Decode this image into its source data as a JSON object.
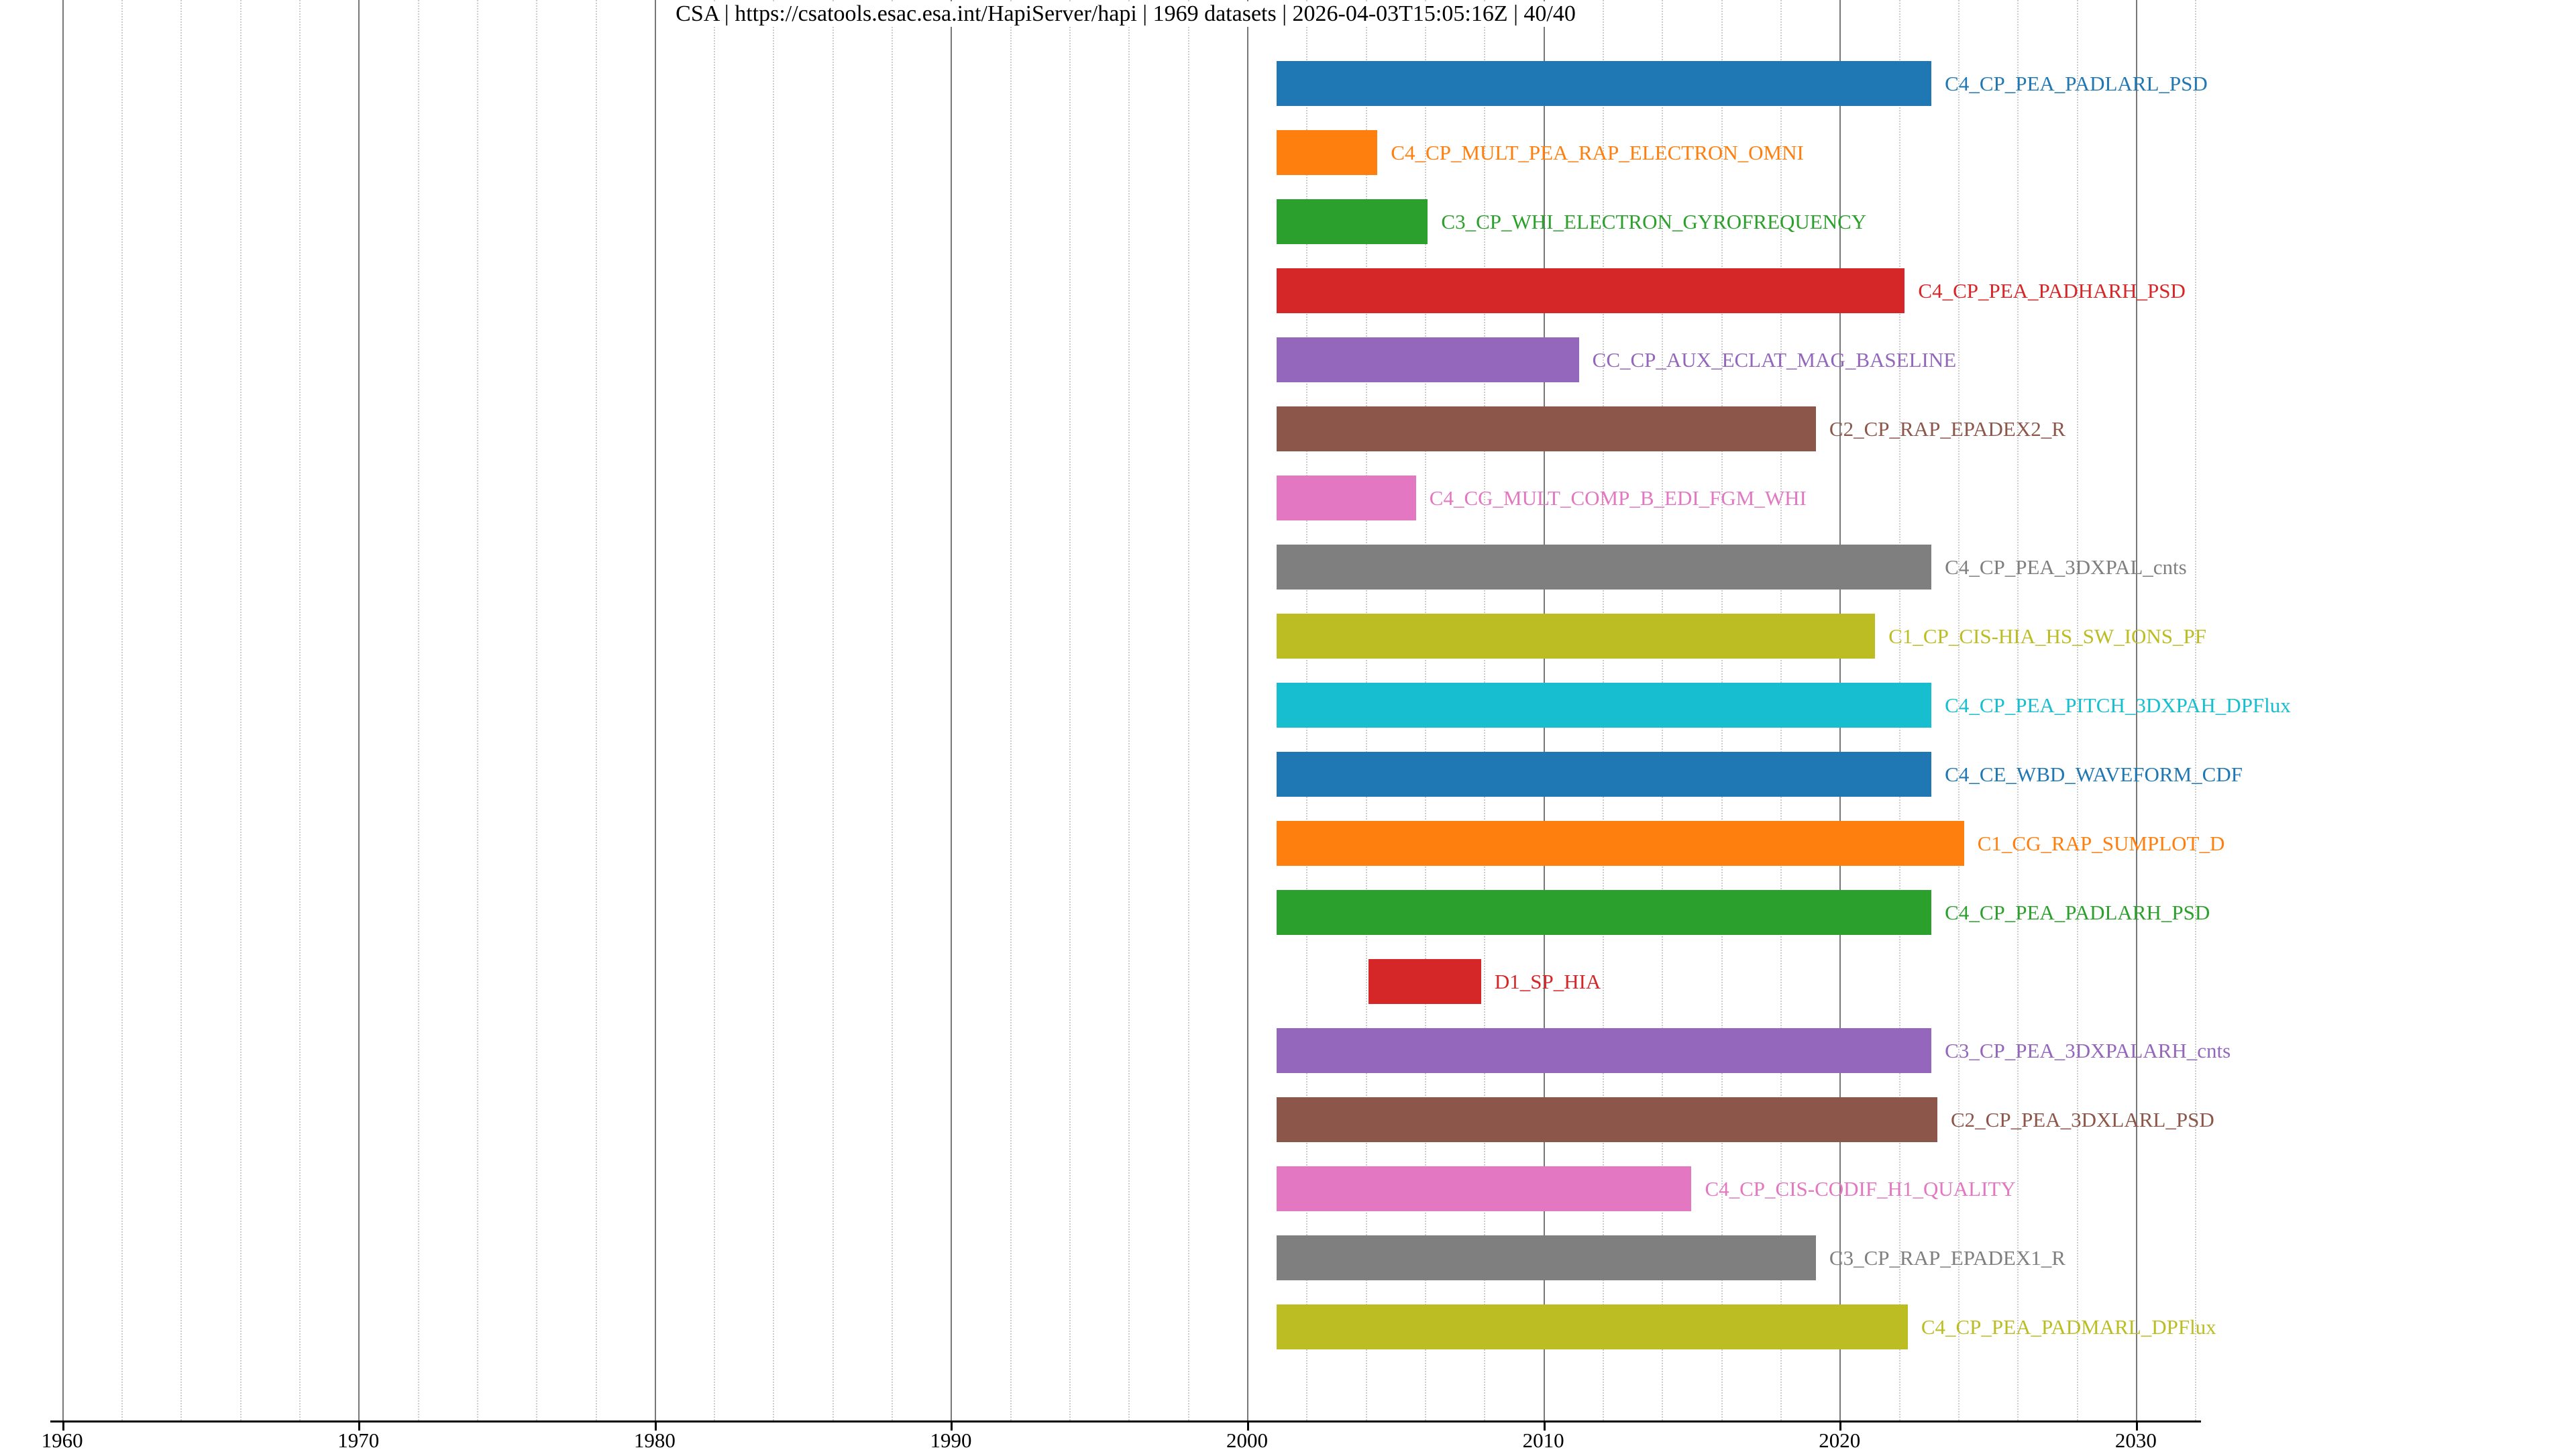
{
  "chart_data": {
    "type": "bar",
    "variant": "horizontal-timeline-gantt",
    "title": "CSA | https://csatools.esac.esa.int/HapiServer/hapi | 1969 datasets | 2026-04-03T15:05:16Z | 40/40",
    "xlabel": "",
    "ylabel": "",
    "xlim": [
      1959.6,
      2032.2
    ],
    "x_ticks": [
      1960,
      1970,
      1980,
      1990,
      2000,
      2010,
      2020,
      2030
    ],
    "minor_tick_step_years": 2,
    "grid": true,
    "legend": "none",
    "axis_color": "#000000",
    "major_grid_color": "#777777",
    "minor_grid_color": "#cccccc",
    "background_color": "#ffffff",
    "series": [
      {
        "label": "C4_CP_PEA_PADLARL_PSD",
        "start_year": 2001.0,
        "end_year": 2023.1,
        "color": "#1f77b4"
      },
      {
        "label": "C4_CP_MULT_PEA_RAP_ELECTRON_OMNI",
        "start_year": 2001.0,
        "end_year": 2004.4,
        "color": "#ff7f0e"
      },
      {
        "label": "C3_CP_WHI_ELECTRON_GYROFREQUENCY",
        "start_year": 2001.0,
        "end_year": 2006.1,
        "color": "#2ca02c"
      },
      {
        "label": "C4_CP_PEA_PADHARH_PSD",
        "start_year": 2001.0,
        "end_year": 2022.2,
        "color": "#d62728"
      },
      {
        "label": "CC_CP_AUX_ECLAT_MAG_BASELINE",
        "start_year": 2001.0,
        "end_year": 2011.2,
        "color": "#9467bd"
      },
      {
        "label": "C2_CP_RAP_EPADEX2_R",
        "start_year": 2001.0,
        "end_year": 2019.2,
        "color": "#8c564b"
      },
      {
        "label": "C4_CG_MULT_COMP_B_EDI_FGM_WHI",
        "start_year": 2001.0,
        "end_year": 2005.7,
        "color": "#e377c2"
      },
      {
        "label": "C4_CP_PEA_3DXPAL_cnts",
        "start_year": 2001.0,
        "end_year": 2023.1,
        "color": "#7f7f7f"
      },
      {
        "label": "C1_CP_CIS-HIA_HS_SW_IONS_PF",
        "start_year": 2001.0,
        "end_year": 2021.2,
        "color": "#bcbd22"
      },
      {
        "label": "C4_CP_PEA_PITCH_3DXPAH_DPFlux",
        "start_year": 2001.0,
        "end_year": 2023.1,
        "color": "#17becf"
      },
      {
        "label": "C4_CE_WBD_WAVEFORM_CDF",
        "start_year": 2001.0,
        "end_year": 2023.1,
        "color": "#1f77b4"
      },
      {
        "label": "C1_CG_RAP_SUMPLOT_D",
        "start_year": 2001.0,
        "end_year": 2024.2,
        "color": "#ff7f0e"
      },
      {
        "label": "C4_CP_PEA_PADLARH_PSD",
        "start_year": 2001.0,
        "end_year": 2023.1,
        "color": "#2ca02c"
      },
      {
        "label": "D1_SP_HIA",
        "start_year": 2004.1,
        "end_year": 2007.9,
        "color": "#d62728"
      },
      {
        "label": "C3_CP_PEA_3DXPALARH_cnts",
        "start_year": 2001.0,
        "end_year": 2023.1,
        "color": "#9467bd"
      },
      {
        "label": "C2_CP_PEA_3DXLARL_PSD",
        "start_year": 2001.0,
        "end_year": 2023.3,
        "color": "#8c564b"
      },
      {
        "label": "C4_CP_CIS-CODIF_H1_QUALITY",
        "start_year": 2001.0,
        "end_year": 2015.0,
        "color": "#e377c2"
      },
      {
        "label": "C3_CP_RAP_EPADEX1_R",
        "start_year": 2001.0,
        "end_year": 2019.2,
        "color": "#7f7f7f"
      },
      {
        "label": "C4_CP_PEA_PADMARL_DPFlux",
        "start_year": 2001.0,
        "end_year": 2022.3,
        "color": "#bcbd22"
      }
    ]
  }
}
